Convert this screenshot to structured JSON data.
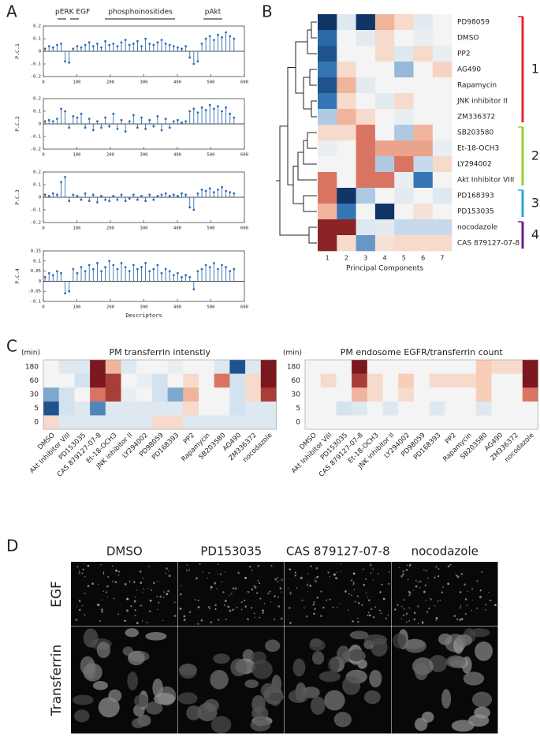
{
  "panel_labels": [
    "A",
    "B",
    "C",
    "D"
  ],
  "chart_data": [
    {
      "type": "stem",
      "ylabel": "P.C.1",
      "color": "#2f6db5",
      "annotations": [
        "pERK EGF",
        "phosphoinositides",
        "pAkt"
      ],
      "x": [
        5,
        17,
        29,
        41,
        53,
        65,
        77,
        89,
        101,
        113,
        125,
        137,
        149,
        161,
        173,
        185,
        197,
        209,
        221,
        233,
        245,
        257,
        269,
        281,
        293,
        305,
        317,
        329,
        341,
        353,
        365,
        377,
        389,
        401,
        413,
        425,
        437,
        449,
        461,
        473,
        485,
        497,
        509,
        521,
        533,
        545,
        557,
        569
      ],
      "values": [
        0.02,
        0.04,
        0.03,
        0.05,
        0.06,
        -0.08,
        -0.09,
        0.02,
        0.04,
        0.03,
        0.05,
        0.07,
        0.04,
        0.06,
        0.03,
        0.08,
        0.05,
        0.06,
        0.04,
        0.07,
        0.09,
        0.05,
        0.06,
        0.08,
        0.04,
        0.1,
        0.06,
        0.05,
        0.07,
        0.09,
        0.06,
        0.05,
        0.04,
        0.03,
        0.02,
        0.04,
        -0.05,
        -0.1,
        -0.08,
        0.06,
        0.1,
        0.12,
        0.09,
        0.13,
        0.11,
        0.15,
        0.12,
        0.1
      ],
      "xlim": [
        0,
        600
      ],
      "xticks": [
        0,
        100,
        200,
        300,
        400,
        500,
        600
      ],
      "ylim": [
        -0.2,
        0.2
      ],
      "yticks": [
        -0.2,
        -0.1,
        0,
        0.1,
        0.2
      ]
    },
    {
      "type": "stem",
      "ylabel": "P.C.2",
      "color": "#2f6db5",
      "x": [
        5,
        17,
        29,
        41,
        53,
        65,
        77,
        89,
        101,
        113,
        125,
        137,
        149,
        161,
        173,
        185,
        197,
        209,
        221,
        233,
        245,
        257,
        269,
        281,
        293,
        305,
        317,
        329,
        341,
        353,
        365,
        377,
        389,
        401,
        413,
        425,
        437,
        449,
        461,
        473,
        485,
        497,
        509,
        521,
        533,
        545,
        557,
        569
      ],
      "values": [
        0.02,
        0.03,
        0.02,
        0.04,
        0.12,
        0.1,
        -0.03,
        0.06,
        0.05,
        0.08,
        -0.03,
        0.04,
        -0.05,
        0.02,
        -0.03,
        0.05,
        -0.02,
        0.08,
        -0.04,
        0.03,
        -0.06,
        0.02,
        0.07,
        -0.03,
        0.05,
        -0.04,
        0.03,
        -0.02,
        0.06,
        -0.05,
        0.04,
        -0.03,
        0.02,
        0.03,
        0.01,
        0.02,
        0.1,
        0.12,
        0.09,
        0.13,
        0.11,
        0.15,
        0.12,
        0.14,
        0.1,
        0.13,
        0.08,
        0.05
      ],
      "xlim": [
        0,
        600
      ],
      "xticks": [
        0,
        100,
        200,
        300,
        400,
        500,
        600
      ],
      "ylim": [
        -0.2,
        0.2
      ],
      "yticks": [
        -0.2,
        -0.1,
        0,
        0.1,
        0.2
      ]
    },
    {
      "type": "stem",
      "ylabel": "P.C.3",
      "color": "#2f6db5",
      "x": [
        5,
        17,
        29,
        41,
        53,
        65,
        77,
        89,
        101,
        113,
        125,
        137,
        149,
        161,
        173,
        185,
        197,
        209,
        221,
        233,
        245,
        257,
        269,
        281,
        293,
        305,
        317,
        329,
        341,
        353,
        365,
        377,
        389,
        401,
        413,
        425,
        437,
        449,
        461,
        473,
        485,
        497,
        509,
        521,
        533,
        545,
        557,
        569
      ],
      "values": [
        0.02,
        0.01,
        0.03,
        0.02,
        0.12,
        0.16,
        -0.03,
        0.02,
        0.01,
        -0.02,
        0.03,
        -0.03,
        0.02,
        -0.04,
        0.01,
        -0.02,
        -0.03,
        0.01,
        -0.02,
        0.02,
        -0.03,
        -0.01,
        0.02,
        -0.02,
        0.01,
        -0.03,
        0.02,
        -0.02,
        0.01,
        0.02,
        0.03,
        0.01,
        0.02,
        0.01,
        0.03,
        0.02,
        -0.08,
        -0.1,
        0.03,
        0.06,
        0.05,
        0.07,
        0.04,
        0.06,
        0.08,
        0.05,
        0.04,
        0.03
      ],
      "xlim": [
        0,
        600
      ],
      "xticks": [
        0,
        100,
        200,
        300,
        400,
        500,
        600
      ],
      "ylim": [
        -0.2,
        0.2
      ],
      "yticks": [
        -0.2,
        -0.1,
        0,
        0.1,
        0.2
      ]
    },
    {
      "type": "stem",
      "ylabel": "P.C.4",
      "xlabel": "Descriptors",
      "color": "#2f6db5",
      "x": [
        5,
        17,
        29,
        41,
        53,
        65,
        77,
        89,
        101,
        113,
        125,
        137,
        149,
        161,
        173,
        185,
        197,
        209,
        221,
        233,
        245,
        257,
        269,
        281,
        293,
        305,
        317,
        329,
        341,
        353,
        365,
        377,
        389,
        401,
        413,
        425,
        437,
        449,
        461,
        473,
        485,
        497,
        509,
        521,
        533,
        545,
        557,
        569
      ],
      "values": [
        0.02,
        0.04,
        0.03,
        0.05,
        0.04,
        -0.06,
        -0.05,
        0.06,
        0.04,
        0.07,
        0.05,
        0.08,
        0.06,
        0.09,
        0.05,
        0.07,
        0.1,
        0.08,
        0.06,
        0.09,
        0.07,
        0.05,
        0.08,
        0.06,
        0.07,
        0.09,
        0.05,
        0.06,
        0.08,
        0.04,
        0.06,
        0.05,
        0.03,
        0.04,
        0.02,
        0.03,
        0.02,
        -0.04,
        0.05,
        0.06,
        0.08,
        0.07,
        0.09,
        0.06,
        0.08,
        0.07,
        0.05,
        0.06
      ],
      "xlim": [
        0,
        600
      ],
      "xticks": [
        0,
        100,
        200,
        300,
        400,
        500,
        600
      ],
      "ylim": [
        -0.1,
        0.15
      ],
      "yticks": [
        -0.1,
        -0.05,
        0,
        0.05,
        0.1,
        0.15
      ]
    },
    {
      "type": "heatmap",
      "xlabel": "Principal Components",
      "rows": [
        "PD98059",
        "DMSO",
        "PP2",
        "AG490",
        "Rapamycin",
        "JNK inhibitor II",
        "ZM336372",
        "SB203580",
        "Et-18-OCH3",
        "LY294002",
        "Akt Inhibitor VIII",
        "PD168393",
        "PD153035",
        "nocodazole",
        "CAS 879127-07-8"
      ],
      "columns": [
        "1",
        "2",
        "3",
        "4",
        "5",
        "6",
        "7"
      ],
      "values": [
        [
          -0.95,
          -0.2,
          -0.95,
          0.4,
          0.2,
          -0.15,
          0
        ],
        [
          -0.7,
          0,
          -0.15,
          0.2,
          0,
          -0.1,
          0
        ],
        [
          -0.8,
          0,
          0,
          0.2,
          -0.2,
          0.2,
          -0.1
        ],
        [
          -0.65,
          0.2,
          0,
          0,
          -0.45,
          0,
          0.25
        ],
        [
          -0.8,
          0.4,
          -0.15,
          0,
          0,
          0,
          0
        ],
        [
          -0.65,
          0.2,
          0,
          -0.15,
          0.2,
          0,
          0
        ],
        [
          -0.4,
          0.4,
          0.2,
          0,
          -0.1,
          0,
          0
        ],
        [
          0.2,
          0.2,
          0.6,
          0,
          -0.4,
          0.4,
          0
        ],
        [
          -0.1,
          0,
          0.6,
          0.45,
          0.45,
          0.45,
          -0.1
        ],
        [
          0,
          0,
          0.6,
          -0.4,
          0.6,
          -0.35,
          0.2
        ],
        [
          0.6,
          0,
          0.6,
          0.6,
          -0.1,
          -0.65,
          0
        ],
        [
          0.6,
          -0.95,
          -0.4,
          0,
          -0.15,
          0,
          -0.2
        ],
        [
          0.4,
          -0.65,
          0,
          -0.95,
          0,
          0.15,
          0
        ],
        [
          0.9,
          0.9,
          -0.2,
          -0.15,
          -0.35,
          -0.35,
          -0.35
        ],
        [
          0.9,
          0.2,
          -0.55,
          0.15,
          0.2,
          0.2,
          0.2
        ]
      ],
      "color_scale": {
        "min": -1,
        "max": 1,
        "colors": [
          "#0b2a59",
          "#2e6fb0",
          "#cfe0ee",
          "#f4f4f4",
          "#f7c9b0",
          "#d35f4e",
          "#6b0a16"
        ]
      },
      "groups": [
        {
          "label": "1",
          "color": "#e2262a",
          "size": 7
        },
        {
          "label": "2",
          "color": "#9acd32",
          "size": 4
        },
        {
          "label": "3",
          "color": "#2aa7df",
          "size": 2
        },
        {
          "label": "4",
          "color": "#6a1b8a",
          "size": 2
        }
      ]
    },
    {
      "type": "heatmap",
      "title": "PM transferrin intenstiy",
      "ylabel": "(min)",
      "rows": [
        "180",
        "60",
        "30",
        "5",
        "0"
      ],
      "columns": [
        "DMSO",
        "Akt Inhibitor VIII",
        "PD153035",
        "CAS 879127-07-8",
        "Et-18-OCH3",
        "JNK inhibitor II",
        "LY294002",
        "PD98059",
        "PD168393",
        "PP2",
        "Rapamycin",
        "SB203580",
        "AG490",
        "ZM336372",
        "nocodazole"
      ],
      "values": [
        [
          0,
          -0.2,
          -0.2,
          0.95,
          0.4,
          -0.2,
          0,
          0,
          -0.1,
          0,
          0,
          -0.2,
          -0.8,
          -0.2,
          0.95
        ],
        [
          0,
          0,
          -0.3,
          0.95,
          0.8,
          0,
          -0.1,
          -0.3,
          0,
          0.2,
          0,
          0.6,
          -0.3,
          0.2,
          0.95
        ],
        [
          -0.5,
          -0.3,
          0,
          0.6,
          0.8,
          -0.1,
          0,
          -0.3,
          -0.5,
          0.4,
          0,
          0,
          -0.3,
          0.2,
          0.8
        ],
        [
          -0.8,
          -0.3,
          -0.2,
          -0.6,
          -0.2,
          -0.2,
          -0.2,
          -0.2,
          -0.2,
          0.2,
          0,
          0,
          -0.3,
          -0.2,
          -0.2
        ],
        [
          0.2,
          -0.2,
          -0.2,
          -0.2,
          -0.2,
          -0.2,
          -0.2,
          0.2,
          0.2,
          -0.2,
          -0.2,
          -0.2,
          -0.2,
          -0.2,
          -0.2
        ]
      ],
      "color_scale": {
        "min": -1,
        "max": 1,
        "colors": [
          "#0b2a59",
          "#2e6fb0",
          "#cfe0ee",
          "#f4f4f4",
          "#f7c9b0",
          "#d35f4e",
          "#6b0a16"
        ]
      }
    },
    {
      "type": "heatmap",
      "title": "PM endosome EGFR/transferrin count",
      "ylabel": "(min)",
      "rows": [
        "180",
        "60",
        "30",
        "5",
        "0"
      ],
      "columns": [
        "DMSO",
        "Akt Inhibitor VIII",
        "PD153035",
        "CAS 879127-07-8",
        "Et-18-OCH3",
        "JNK inhibitor II",
        "LY294002",
        "PD98059",
        "PD168393",
        "PP2",
        "Rapamycin",
        "SB203580",
        "AG490",
        "ZM336372",
        "nocodazole"
      ],
      "values": [
        [
          0,
          0,
          0,
          0.95,
          0,
          0,
          0,
          0,
          0,
          0,
          0,
          0.3,
          0.2,
          0.2,
          0.95
        ],
        [
          0,
          0.2,
          0,
          0.8,
          0.2,
          0,
          0.3,
          0,
          0.2,
          0.2,
          0.2,
          0.3,
          0,
          0,
          0.95
        ],
        [
          0,
          0,
          0,
          0.4,
          0.2,
          0,
          0.2,
          0,
          0,
          0,
          0,
          0.3,
          0,
          0,
          0.6
        ],
        [
          0,
          0,
          -0.3,
          -0.2,
          0,
          -0.2,
          0,
          0,
          -0.2,
          0,
          0,
          -0.2,
          0,
          0,
          0
        ],
        [
          0,
          0,
          0,
          0,
          0,
          0,
          0,
          0,
          0,
          0,
          0,
          0,
          0,
          0,
          0
        ]
      ],
      "color_scale": {
        "min": -1,
        "max": 1,
        "colors": [
          "#0b2a59",
          "#2e6fb0",
          "#cfe0ee",
          "#f4f4f4",
          "#f7c9b0",
          "#d35f4e",
          "#6b0a16"
        ]
      }
    }
  ],
  "microscopy": {
    "column_labels": [
      "DMSO",
      "PD153035",
      "CAS 879127-07-8",
      "nocodazole"
    ],
    "row_labels": [
      "EGF",
      "Transferrin"
    ]
  }
}
